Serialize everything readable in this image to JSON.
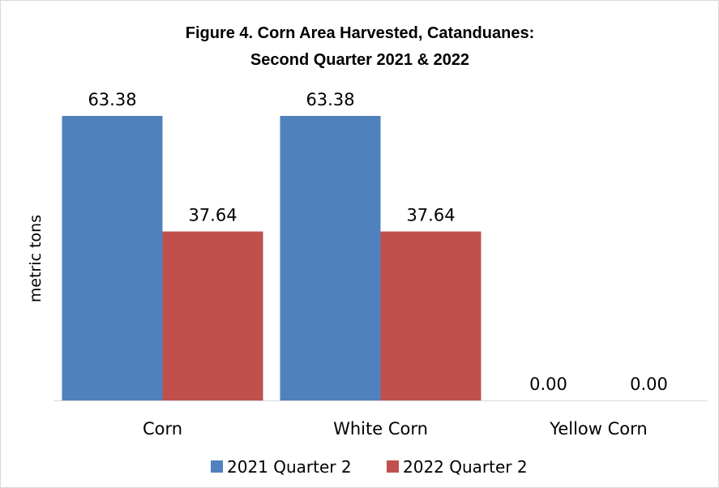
{
  "chart_data": {
    "type": "bar",
    "title_line1": "Figure 4. Corn Area Harvested, Catanduanes:",
    "title_line2": "Second Quarter 2021 & 2022",
    "xlabel": "",
    "ylabel": "metric tons",
    "categories": [
      "Corn",
      "White Corn",
      "Yellow Corn"
    ],
    "series": [
      {
        "name": "2021 Quarter 2",
        "color": "#4f81bd",
        "values": [
          63.38,
          63.38,
          0.0
        ],
        "labels": [
          "63.38",
          "63.38",
          "0.00"
        ]
      },
      {
        "name": "2022 Quarter 2",
        "color": "#c0504d",
        "values": [
          37.64,
          37.64,
          0.0
        ],
        "labels": [
          "37.64",
          "37.64",
          "0.00"
        ]
      }
    ],
    "ylim": [
      0,
      63.38
    ],
    "grid": false,
    "legend_position": "bottom"
  }
}
